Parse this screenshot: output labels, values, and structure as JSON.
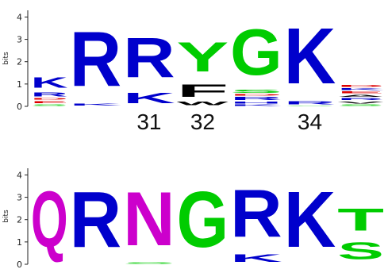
{
  "colors": {
    "Q": "#cc00cc",
    "N": "#cc00cc",
    "S": "#00cc00",
    "T": "#00cc00",
    "G": "#00cc00",
    "Y": "#00cc00",
    "C": "#00cc00",
    "R": "#0000cc",
    "K": "#0000cc",
    "H": "#0000cc",
    "D": "#dd0000",
    "E": "#dd0000",
    "A": "#000000",
    "F": "#000000",
    "W": "#000000",
    "V": "#000000",
    "L": "#000000",
    "I": "#000000",
    "M": "#000000",
    "P": "#000000"
  },
  "chart_data": [
    {
      "type": "sequence-logo",
      "ylabel": "bits",
      "ylim": [
        0,
        4.3
      ],
      "yticks": [
        "0",
        "1",
        "2",
        "3",
        "4"
      ],
      "position_labels": [
        "",
        "",
        "31",
        "32",
        "",
        "34",
        ""
      ],
      "positions": [
        {
          "stack": [
            {
              "letter": "S",
              "bits": 0.12
            },
            {
              "letter": "E",
              "bits": 0.15
            },
            {
              "letter": "D",
              "bits": 0.12
            },
            {
              "letter": "R",
              "bits": 0.3
            },
            {
              "letter": "K",
              "bits": 0.75
            }
          ]
        },
        {
          "stack": [
            {
              "letter": "K",
              "bits": 0.15
            },
            {
              "letter": "R",
              "bits": 3.9
            }
          ]
        },
        {
          "stack": [
            {
              "letter": "K",
              "bits": 0.75
            },
            {
              "letter": "R",
              "bits": 2.85
            }
          ]
        },
        {
          "stack": [
            {
              "letter": "W",
              "bits": 0.25
            },
            {
              "letter": "F",
              "bits": 0.9
            },
            {
              "letter": "Y",
              "bits": 2.1
            }
          ]
        },
        {
          "stack": [
            {
              "letter": "K",
              "bits": 0.1
            },
            {
              "letter": "H",
              "bits": 0.15
            },
            {
              "letter": "R",
              "bits": 0.2
            },
            {
              "letter": "D",
              "bits": 0.12
            },
            {
              "letter": "S",
              "bits": 0.2
            },
            {
              "letter": "G",
              "bits": 3.3
            }
          ]
        },
        {
          "stack": [
            {
              "letter": "S",
              "bits": 0.05
            },
            {
              "letter": "R",
              "bits": 0.2
            },
            {
              "letter": "K",
              "bits": 4.0
            }
          ]
        },
        {
          "stack": [
            {
              "letter": "S",
              "bits": 0.1
            },
            {
              "letter": "V",
              "bits": 0.15
            },
            {
              "letter": "R",
              "bits": 0.15
            },
            {
              "letter": "A",
              "bits": 0.15
            },
            {
              "letter": "E",
              "bits": 0.15
            },
            {
              "letter": "K",
              "bits": 0.15
            },
            {
              "letter": "D",
              "bits": 0.15
            }
          ]
        }
      ]
    },
    {
      "type": "sequence-logo",
      "ylabel": "bits",
      "ylim": [
        0,
        4.3
      ],
      "yticks": [
        "0",
        "1",
        "2",
        "3",
        "4"
      ],
      "position_labels": [
        "",
        "",
        "",
        "",
        "",
        "",
        ""
      ],
      "positions": [
        {
          "stack": [
            {
              "letter": "Q",
              "bits": 4.0
            }
          ]
        },
        {
          "stack": [
            {
              "letter": "R",
              "bits": 4.0
            }
          ]
        },
        {
          "stack": [
            {
              "letter": "S",
              "bits": 0.1
            },
            {
              "letter": "N",
              "bits": 3.85
            }
          ]
        },
        {
          "stack": [
            {
              "letter": "G",
              "bits": 4.0
            }
          ]
        },
        {
          "stack": [
            {
              "letter": "K",
              "bits": 0.55
            },
            {
              "letter": "R",
              "bits": 3.4
            }
          ]
        },
        {
          "stack": [
            {
              "letter": "K",
              "bits": 4.0
            }
          ]
        },
        {
          "stack": [
            {
              "letter": "S",
              "bits": 1.2
            },
            {
              "letter": "T",
              "bits": 1.6
            }
          ]
        }
      ]
    }
  ]
}
